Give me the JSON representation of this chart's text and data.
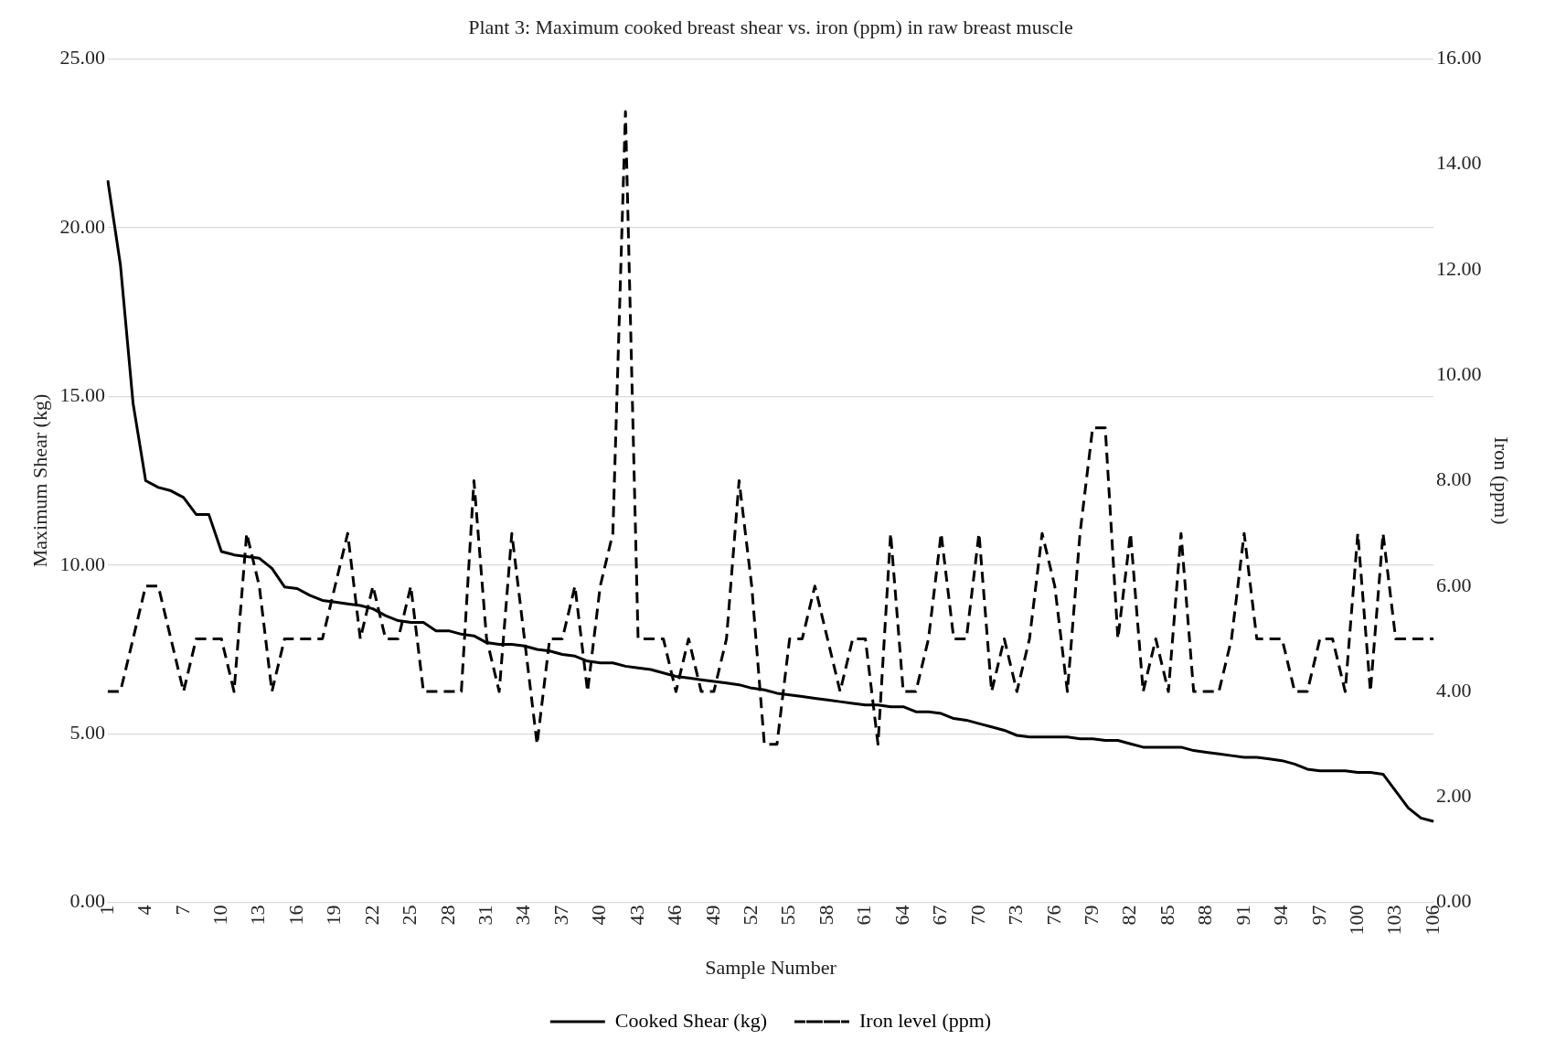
{
  "chart_data": {
    "type": "line",
    "title": "Plant 3: Maximum cooked breast shear vs. iron (ppm) in raw breast muscle",
    "xlabel": "Sample Number",
    "ylabel": "Maximum Shear (kg)",
    "y2label": "Iron (ppm)",
    "categories": [
      "1",
      null,
      null,
      "4",
      null,
      null,
      "7",
      null,
      null,
      "10",
      null,
      null,
      "13",
      null,
      null,
      "16",
      null,
      null,
      "19",
      null,
      null,
      "22",
      null,
      null,
      "25",
      null,
      null,
      "28",
      null,
      null,
      "31",
      null,
      null,
      "34",
      null,
      null,
      "37",
      null,
      null,
      "40",
      null,
      null,
      "43",
      null,
      null,
      "46",
      null,
      null,
      "49",
      null,
      null,
      "52",
      null,
      null,
      "55",
      null,
      null,
      "58",
      null,
      null,
      "61",
      null,
      null,
      "64",
      null,
      null,
      "67",
      null,
      null,
      "70",
      null,
      null,
      "73",
      null,
      null,
      "76",
      null,
      null,
      "79",
      null,
      null,
      "82",
      null,
      null,
      "85",
      null,
      null,
      "88",
      null,
      null,
      "91",
      null,
      null,
      "94",
      null,
      null,
      "97",
      null,
      null,
      "100",
      null,
      null,
      "103",
      null,
      null,
      "106"
    ],
    "series": [
      {
        "name": "Cooked Shear (kg)",
        "color": "#000000",
        "line_style": "solid",
        "values": [
          21.4,
          18.9,
          14.8,
          12.5,
          12.3,
          12.2,
          12.0,
          11.5,
          11.5,
          10.4,
          10.3,
          10.25,
          10.2,
          9.9,
          9.35,
          9.3,
          9.1,
          8.95,
          8.9,
          8.85,
          8.8,
          8.7,
          8.5,
          8.35,
          8.3,
          8.3,
          8.05,
          8.05,
          7.95,
          7.9,
          7.7,
          7.65,
          7.65,
          7.6,
          7.5,
          7.45,
          7.35,
          7.3,
          7.15,
          7.1,
          7.1,
          7.0,
          6.95,
          6.9,
          6.8,
          6.7,
          6.65,
          6.6,
          6.55,
          6.5,
          6.45,
          6.35,
          6.3,
          6.2,
          6.15,
          6.1,
          6.05,
          6.0,
          5.95,
          5.9,
          5.85,
          5.85,
          5.8,
          5.8,
          5.65,
          5.65,
          5.6,
          5.45,
          5.4,
          5.3,
          5.2,
          5.1,
          4.95,
          4.9,
          4.9,
          4.9,
          4.9,
          4.85,
          4.85,
          4.8,
          4.8,
          4.7,
          4.6,
          4.6,
          4.6,
          4.6,
          4.5,
          4.45,
          4.4,
          4.35,
          4.3,
          4.3,
          4.25,
          4.2,
          4.1,
          3.95,
          3.9,
          3.9,
          3.9,
          3.85,
          3.85,
          3.8,
          3.3,
          2.8,
          2.5,
          2.4
        ]
      },
      {
        "name": "Iron level (ppm)",
        "color": "#000000",
        "line_style": "dashed",
        "axis": "y2",
        "values": [
          4,
          4,
          5,
          6,
          6,
          5,
          4,
          5,
          5,
          5,
          4,
          7,
          6,
          4,
          5,
          5,
          5,
          5,
          6,
          7,
          5,
          6,
          5,
          5,
          6,
          4,
          4,
          4,
          4,
          8,
          5,
          4,
          7,
          5,
          3,
          5,
          5,
          6,
          4,
          6,
          7,
          15,
          5,
          5,
          5,
          4,
          5,
          4,
          4,
          5,
          8,
          6,
          3,
          3,
          5,
          5,
          6,
          5,
          4,
          5,
          5,
          3,
          7,
          4,
          4,
          5,
          7,
          5,
          5,
          7,
          4,
          5,
          4,
          5,
          7,
          6,
          4,
          7,
          9,
          9,
          5,
          7,
          4,
          5,
          4,
          7,
          4,
          4,
          4,
          5,
          7,
          5,
          5,
          5,
          4,
          4,
          5,
          5,
          4,
          7,
          4,
          7,
          5,
          5,
          5,
          5
        ]
      }
    ],
    "ylim": [
      0,
      25
    ],
    "yticks": [
      {
        "value": 0,
        "label": "0.00"
      },
      {
        "value": 5,
        "label": "5.00"
      },
      {
        "value": 10,
        "label": "10.00"
      },
      {
        "value": 15,
        "label": "15.00"
      },
      {
        "value": 20,
        "label": "20.00"
      },
      {
        "value": 25,
        "label": "25.00"
      }
    ],
    "y2lim": [
      0,
      16
    ],
    "y2ticks": [
      {
        "value": 0,
        "label": "0.00"
      },
      {
        "value": 2,
        "label": "2.00"
      },
      {
        "value": 4,
        "label": "4.00"
      },
      {
        "value": 6,
        "label": "6.00"
      },
      {
        "value": 8,
        "label": "8.00"
      },
      {
        "value": 10,
        "label": "10.00"
      },
      {
        "value": 12,
        "label": "12.00"
      },
      {
        "value": 14,
        "label": "14.00"
      },
      {
        "value": 16,
        "label": "16.00"
      }
    ],
    "grid": "y",
    "legend": "bottom",
    "marker": "none"
  }
}
